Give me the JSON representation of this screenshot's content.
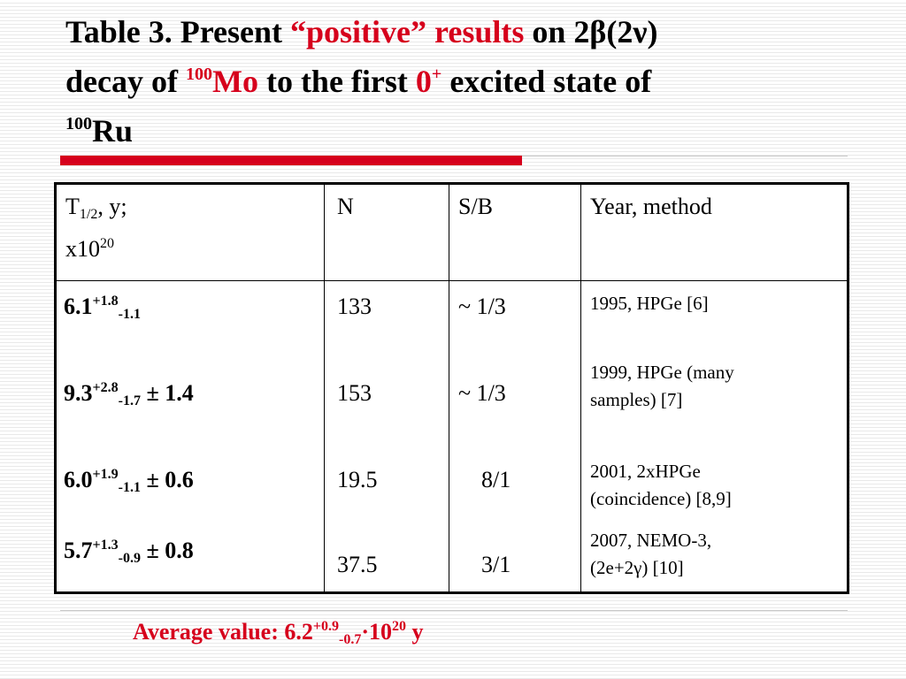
{
  "title": {
    "part1": "Table 3. Present ",
    "part2_red": "“positive” results",
    "part3": " on 2",
    "beta": "β",
    "part4": "(2",
    "nu": "ν",
    "part5": ")",
    "line2_a": "decay of ",
    "mo_mass": "100",
    "mo_sym": "Mo",
    "line2_b": " to the first ",
    "zero": "0",
    "plus": "+",
    "line2_c": " excited state of",
    "ru_mass": "100",
    "ru_sym": "Ru"
  },
  "table": {
    "headers": {
      "halflife_T": "T",
      "halflife_sub": "1/2",
      "halflife_rest": ", y;",
      "halflife_x": "x10",
      "halflife_exp": "20",
      "n": "N",
      "sb": "S/B",
      "year": "Year, method"
    },
    "rows": [
      {
        "val": "6.1",
        "up": "+1.8",
        "down": "-1.1",
        "sys": "",
        "n": "133",
        "sb": "~ 1/3",
        "year_l1": "1995, HPGe [6]",
        "year_l2": ""
      },
      {
        "val": "9.3",
        "up": "+2.8",
        "down": "-1.7",
        "sys": " ± 1.4",
        "n": "153",
        "sb": "~ 1/3",
        "year_l1": "1999, HPGe (many",
        "year_l2": "samples) [7]"
      },
      {
        "val": "6.0",
        "up": "+1.9",
        "down": "-1.1",
        "sys": " ± 0.6",
        "n": "19.5",
        "sb": "8/1",
        "year_l1": "2001, 2xHPGe",
        "year_l2": "(coincidence) [8,9]"
      },
      {
        "val": "5.7",
        "up": "+1.3",
        "down": "-0.9",
        "sys": " ± 0.8",
        "n": "37.5",
        "sb": "3/1",
        "year_l1": "2007, NEMO-3,",
        "year_l2": "(2e+2γ) [10]"
      }
    ]
  },
  "average": {
    "label": "Average value:  6.2",
    "up": "+0.9",
    "down": "-0.7",
    "dot": "·",
    "ten": "10",
    "exp": "20",
    "unit": " y"
  },
  "colors": {
    "accent_red": "#d6001c"
  }
}
